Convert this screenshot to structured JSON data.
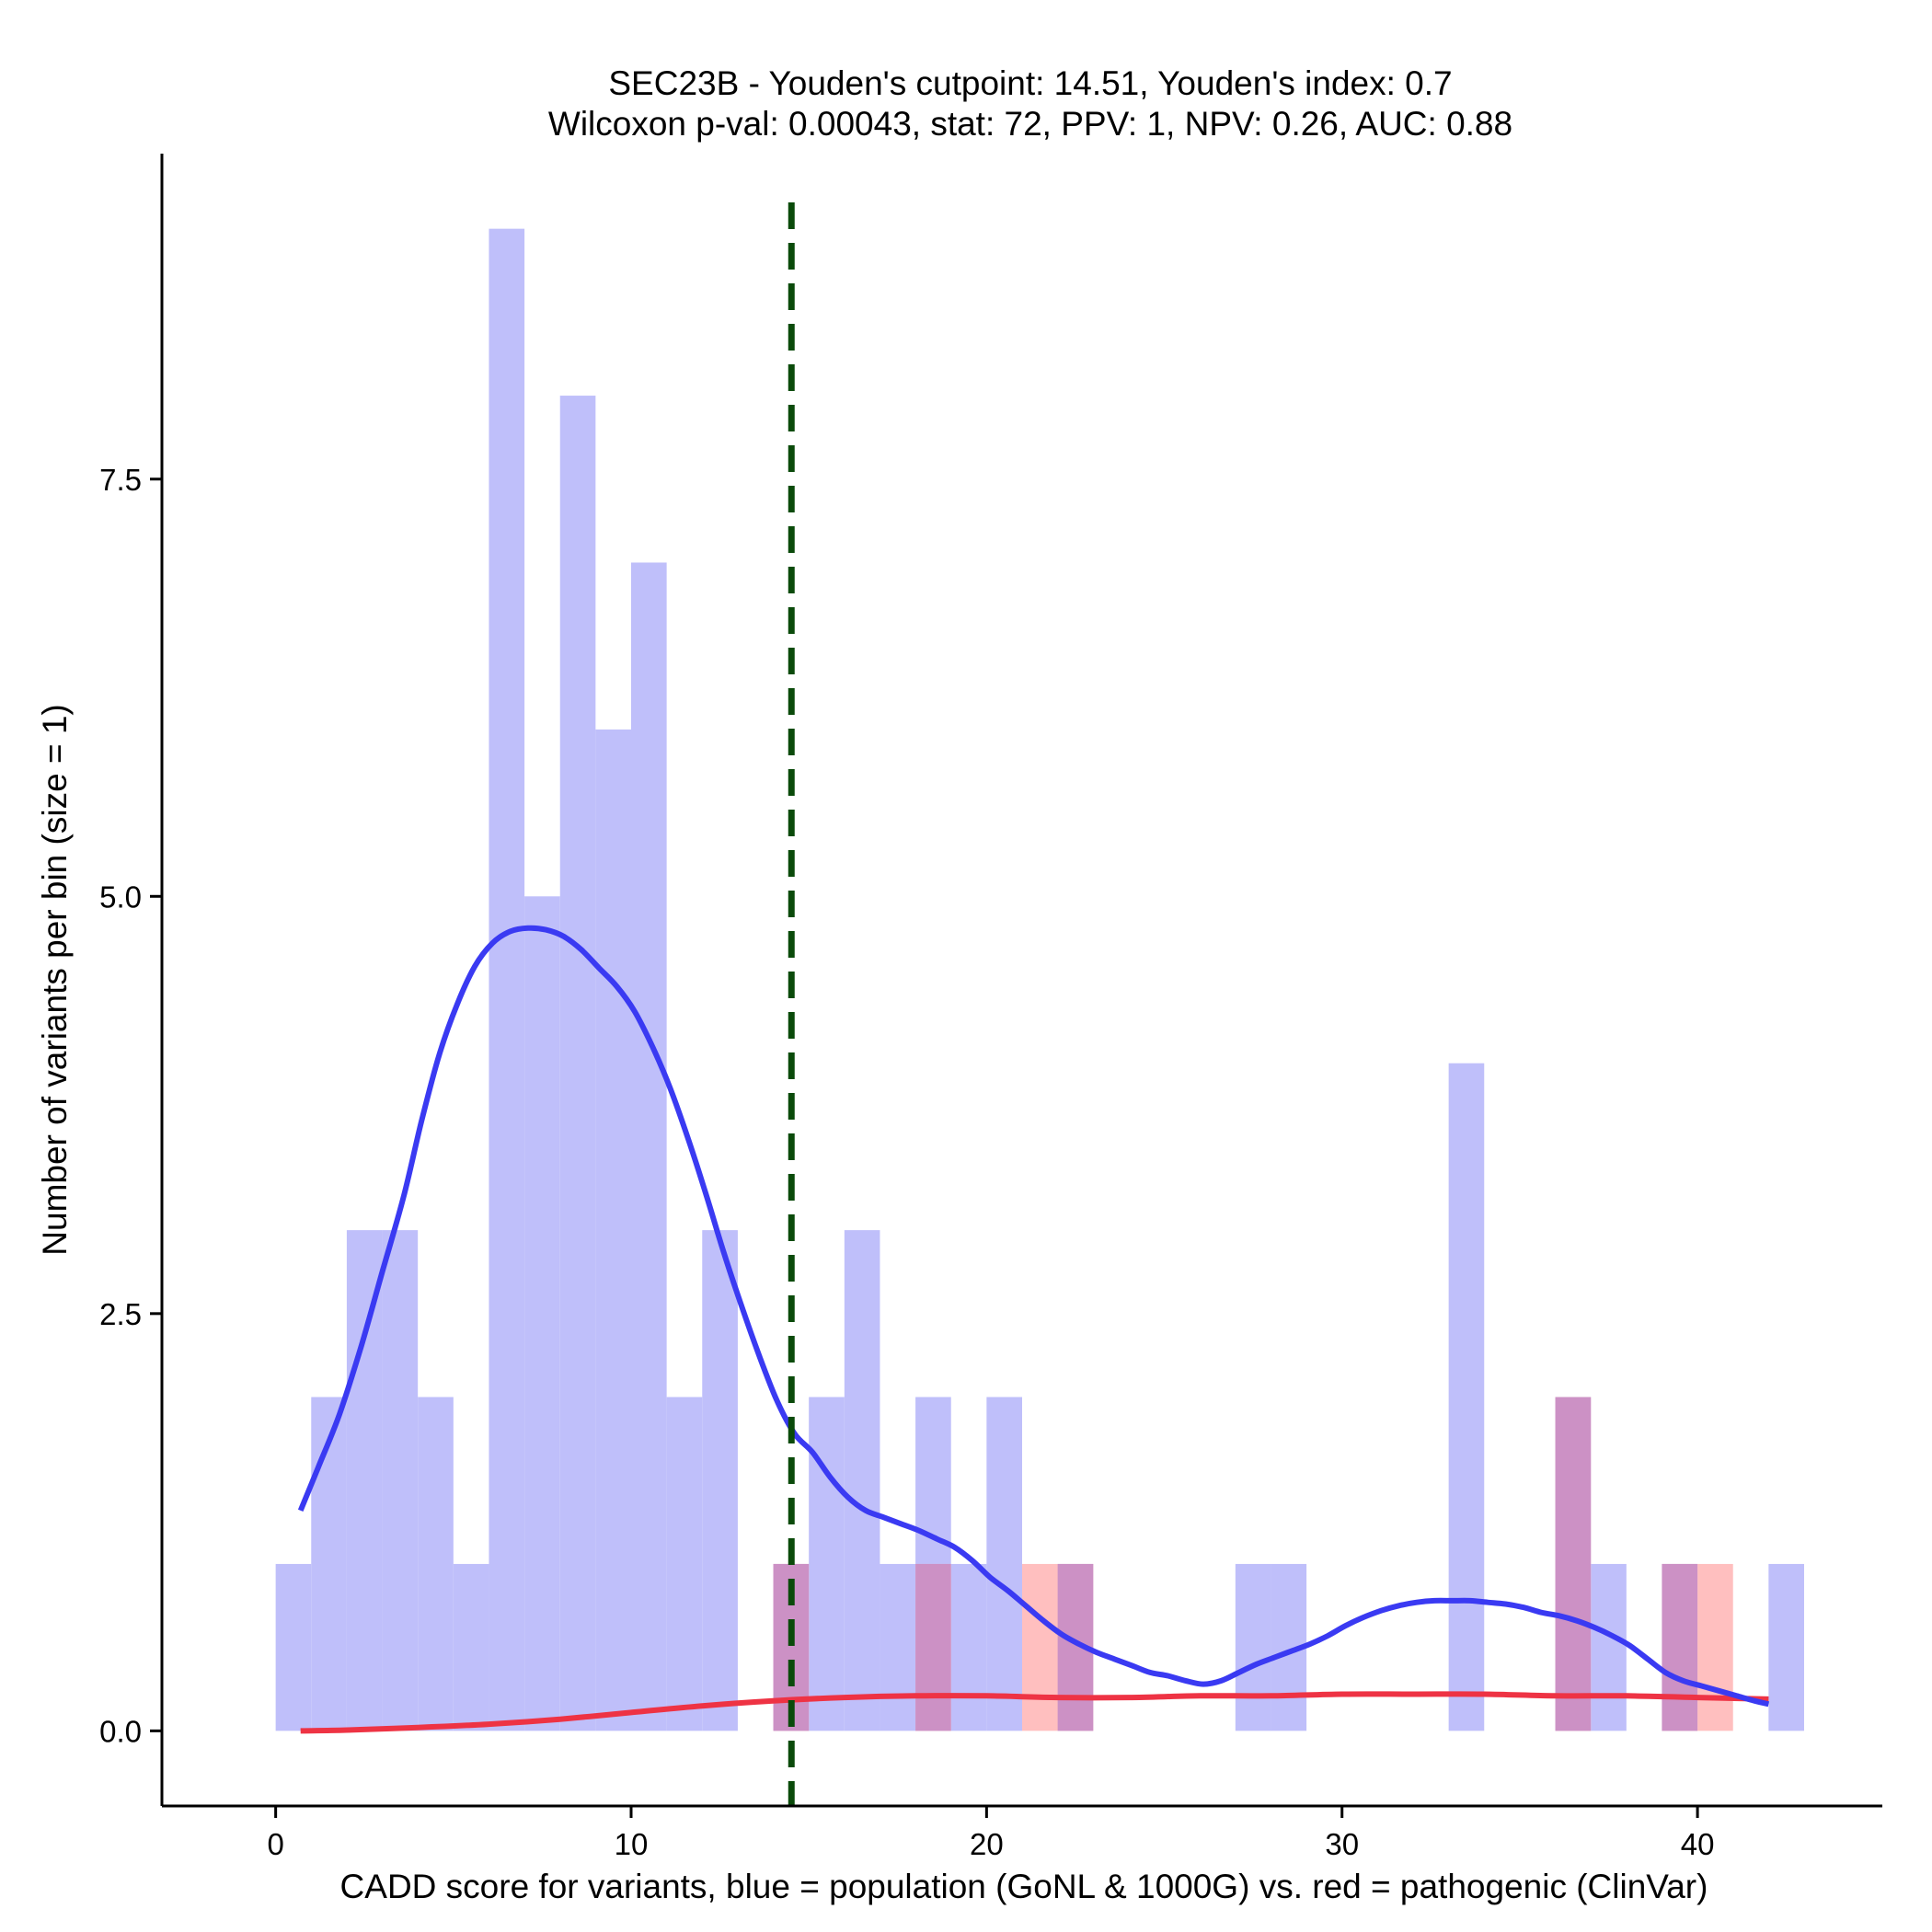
{
  "chart_data": {
    "type": "bar",
    "title_line1": "SEC23B - Youden's cutpoint: 14.51, Youden's index: 0.7",
    "title_line2": "Wilcoxon p-val: 0.00043, stat: 72, PPV: 1, NPV: 0.26, AUC: 0.88",
    "xlabel": "CADD score for variants, blue = population (GoNL & 1000G) vs. red = pathogenic (ClinVar)",
    "ylabel": "Number of variants per bin (size = 1)",
    "xlim": [
      -3.2,
      45.2
    ],
    "ylim": [
      -0.45,
      9.45
    ],
    "x_ticks": [
      0,
      10,
      20,
      30,
      40
    ],
    "x_tick_labels": [
      "0",
      "10",
      "20",
      "30",
      "40"
    ],
    "y_ticks": [
      0,
      2.5,
      5,
      7.5
    ],
    "y_tick_labels": [
      "0.0",
      "2.5",
      "5.0",
      "7.5"
    ],
    "bin_width": 1,
    "cutpoint": 14.51,
    "colors": {
      "population_bar": "#bfbffa",
      "pathogenic_bar": "#ffbfbf",
      "overlap_bar": "#cc91c5",
      "population_density": "#3a3af2",
      "pathogenic_density": "#ee3344",
      "cutpoint_line": "#0a4a0a"
    },
    "series": [
      {
        "name": "population (GoNL & 1000G)",
        "bins": [
          {
            "x": 0,
            "count": 1
          },
          {
            "x": 1,
            "count": 2
          },
          {
            "x": 2,
            "count": 3
          },
          {
            "x": 3,
            "count": 3
          },
          {
            "x": 4,
            "count": 2
          },
          {
            "x": 5,
            "count": 1
          },
          {
            "x": 6,
            "count": 9
          },
          {
            "x": 7,
            "count": 5
          },
          {
            "x": 8,
            "count": 8
          },
          {
            "x": 9,
            "count": 6
          },
          {
            "x": 10,
            "count": 7
          },
          {
            "x": 11,
            "count": 2
          },
          {
            "x": 12,
            "count": 3
          },
          {
            "x": 14,
            "count": 1
          },
          {
            "x": 15,
            "count": 2
          },
          {
            "x": 16,
            "count": 3
          },
          {
            "x": 17,
            "count": 1
          },
          {
            "x": 18,
            "count": 2
          },
          {
            "x": 19,
            "count": 1
          },
          {
            "x": 20,
            "count": 2
          },
          {
            "x": 22,
            "count": 1
          },
          {
            "x": 27,
            "count": 1
          },
          {
            "x": 28,
            "count": 1
          },
          {
            "x": 33,
            "count": 4
          },
          {
            "x": 36,
            "count": 2
          },
          {
            "x": 37,
            "count": 1
          },
          {
            "x": 39,
            "count": 1
          },
          {
            "x": 42,
            "count": 1
          }
        ]
      },
      {
        "name": "pathogenic (ClinVar)",
        "bins": [
          {
            "x": 14,
            "count": 1
          },
          {
            "x": 18,
            "count": 1
          },
          {
            "x": 21,
            "count": 1
          },
          {
            "x": 22,
            "count": 1
          },
          {
            "x": 36,
            "count": 2
          },
          {
            "x": 39,
            "count": 1
          },
          {
            "x": 40,
            "count": 1
          }
        ]
      }
    ],
    "density_population": [
      [
        0.7,
        1.32
      ],
      [
        1.2,
        1.58
      ],
      [
        1.8,
        1.9
      ],
      [
        2.4,
        2.3
      ],
      [
        3.0,
        2.75
      ],
      [
        3.6,
        3.2
      ],
      [
        4.1,
        3.65
      ],
      [
        4.6,
        4.05
      ],
      [
        5.1,
        4.35
      ],
      [
        5.6,
        4.58
      ],
      [
        6.1,
        4.72
      ],
      [
        6.6,
        4.79
      ],
      [
        7.1,
        4.81
      ],
      [
        7.6,
        4.8
      ],
      [
        8.1,
        4.76
      ],
      [
        8.6,
        4.68
      ],
      [
        9.1,
        4.57
      ],
      [
        9.6,
        4.46
      ],
      [
        10.1,
        4.31
      ],
      [
        10.6,
        4.1
      ],
      [
        11.1,
        3.85
      ],
      [
        11.6,
        3.55
      ],
      [
        12.1,
        3.22
      ],
      [
        12.6,
        2.87
      ],
      [
        13.1,
        2.55
      ],
      [
        13.6,
        2.25
      ],
      [
        14.1,
        1.98
      ],
      [
        14.6,
        1.78
      ],
      [
        15.1,
        1.67
      ],
      [
        15.6,
        1.52
      ],
      [
        16.1,
        1.4
      ],
      [
        16.6,
        1.32
      ],
      [
        17.1,
        1.28
      ],
      [
        17.6,
        1.24
      ],
      [
        18.1,
        1.2
      ],
      [
        18.6,
        1.15
      ],
      [
        19.1,
        1.1
      ],
      [
        19.6,
        1.02
      ],
      [
        20.1,
        0.92
      ],
      [
        20.6,
        0.84
      ],
      [
        21.1,
        0.75
      ],
      [
        21.6,
        0.66
      ],
      [
        22.1,
        0.58
      ],
      [
        22.6,
        0.52
      ],
      [
        23.1,
        0.47
      ],
      [
        23.6,
        0.43
      ],
      [
        24.1,
        0.39
      ],
      [
        24.6,
        0.35
      ],
      [
        25.1,
        0.33
      ],
      [
        25.6,
        0.3
      ],
      [
        26.1,
        0.28
      ],
      [
        26.6,
        0.3
      ],
      [
        27.1,
        0.35
      ],
      [
        27.6,
        0.4
      ],
      [
        28.1,
        0.44
      ],
      [
        28.6,
        0.48
      ],
      [
        29.1,
        0.52
      ],
      [
        29.6,
        0.57
      ],
      [
        30.1,
        0.63
      ],
      [
        30.6,
        0.68
      ],
      [
        31.1,
        0.72
      ],
      [
        31.6,
        0.75
      ],
      [
        32.1,
        0.77
      ],
      [
        32.6,
        0.78
      ],
      [
        33.1,
        0.78
      ],
      [
        33.6,
        0.78
      ],
      [
        34.1,
        0.77
      ],
      [
        34.6,
        0.76
      ],
      [
        35.1,
        0.74
      ],
      [
        35.6,
        0.71
      ],
      [
        36.1,
        0.69
      ],
      [
        36.6,
        0.66
      ],
      [
        37.1,
        0.62
      ],
      [
        37.6,
        0.57
      ],
      [
        38.1,
        0.51
      ],
      [
        38.6,
        0.43
      ],
      [
        39.1,
        0.35
      ],
      [
        39.6,
        0.3
      ],
      [
        40.1,
        0.27
      ],
      [
        40.6,
        0.24
      ],
      [
        41.1,
        0.21
      ],
      [
        41.6,
        0.18
      ],
      [
        42.0,
        0.16
      ]
    ],
    "density_pathogenic": [
      [
        0.7,
        0.0
      ],
      [
        2.0,
        0.005
      ],
      [
        4.0,
        0.02
      ],
      [
        6.0,
        0.04
      ],
      [
        8.0,
        0.07
      ],
      [
        10.0,
        0.11
      ],
      [
        12.0,
        0.15
      ],
      [
        14.0,
        0.18
      ],
      [
        16.0,
        0.2
      ],
      [
        18.0,
        0.21
      ],
      [
        20.0,
        0.21
      ],
      [
        22.0,
        0.2
      ],
      [
        24.0,
        0.2
      ],
      [
        26.0,
        0.21
      ],
      [
        28.0,
        0.21
      ],
      [
        30.0,
        0.22
      ],
      [
        32.0,
        0.22
      ],
      [
        34.0,
        0.22
      ],
      [
        36.0,
        0.21
      ],
      [
        38.0,
        0.21
      ],
      [
        40.0,
        0.2
      ],
      [
        42.0,
        0.19
      ]
    ]
  }
}
